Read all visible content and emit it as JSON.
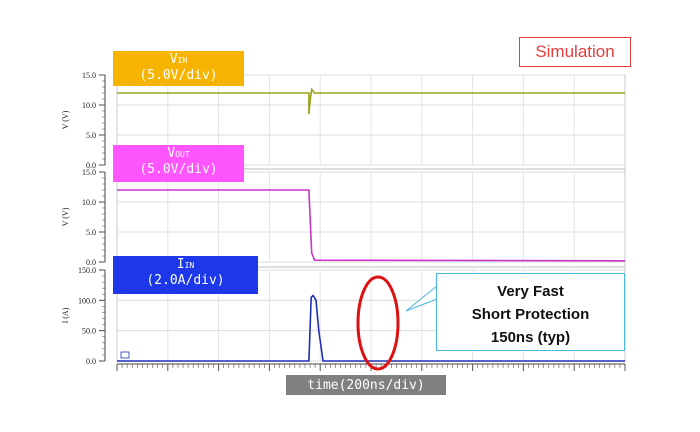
{
  "badge": {
    "text": "Simulation",
    "color": "#e43b3b"
  },
  "chart_data": [
    {
      "type": "line",
      "label_main": "V",
      "label_sub": "IN",
      "scale": "(5.0V/div)",
      "ylabel": "V (V)",
      "yticks": [
        "15.0",
        "10.0",
        "5.0",
        "0.0"
      ],
      "ylim": [
        0,
        15
      ],
      "color": "#9aa41c",
      "label_color": "#f6b400",
      "x": [
        0,
        6.8,
        6.8,
        6.85,
        6.9,
        7.0,
        18
      ],
      "y": [
        12.0,
        12.0,
        8.5,
        11.0,
        12.6,
        12.0,
        12.0
      ]
    },
    {
      "type": "line",
      "label_main": "V",
      "label_sub": "OUT",
      "scale": "(5.0V/div)",
      "ylabel": "V (V)",
      "yticks": [
        "15.0",
        "10.0",
        "5.0",
        "0.0"
      ],
      "ylim": [
        0,
        15
      ],
      "color": "#cc33cc",
      "label_color": "#ff55ff",
      "x": [
        0,
        6.8,
        6.9,
        7.0,
        18
      ],
      "y": [
        12.0,
        12.0,
        1.5,
        0.3,
        0.2
      ]
    },
    {
      "type": "line",
      "label_main": "I",
      "label_sub": "IN",
      "scale": "(2.0A/div)",
      "ylabel": "I (A)",
      "yticks": [
        "150.0",
        "100.0",
        "50.0",
        "0.0"
      ],
      "ylim": [
        0,
        150
      ],
      "color": "#1c2fb8",
      "label_color": "#1c38e8",
      "x": [
        0,
        6.8,
        6.88,
        6.95,
        7.05,
        7.15,
        7.3,
        18
      ],
      "y": [
        0,
        0,
        105,
        108,
        100,
        50,
        0,
        0
      ]
    }
  ],
  "callout": {
    "line1": "Very Fast",
    "line2": "Short Protection",
    "line3": "150ns (typ)"
  },
  "xaxis": {
    "label": "time(200ns/div)"
  },
  "highlight_color": "#dd1111"
}
